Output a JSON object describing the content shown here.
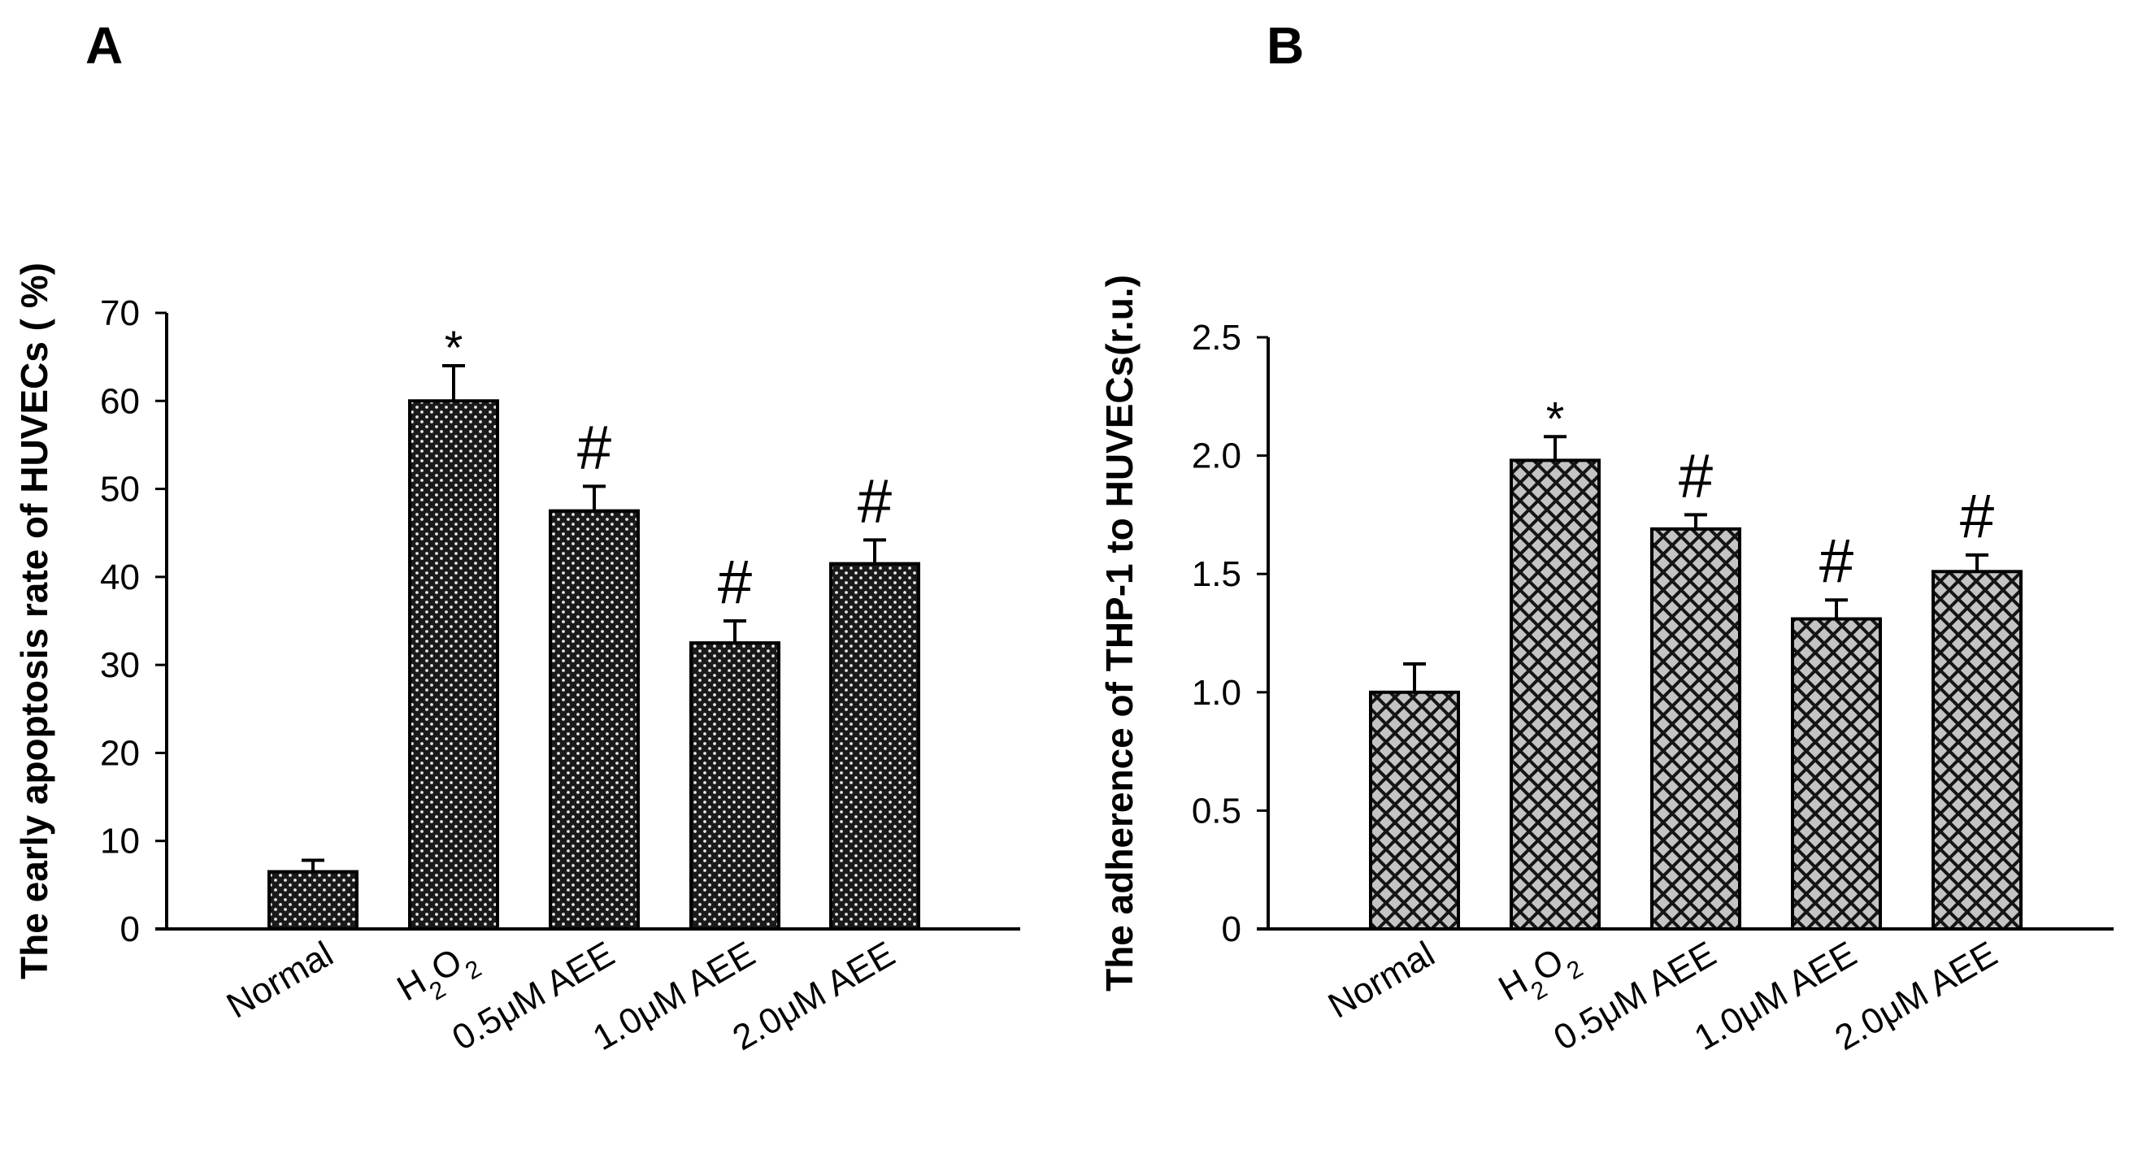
{
  "chart_data": [
    {
      "type": "bar",
      "panel_label": "A",
      "categories": [
        "Normal",
        "H2O2",
        "0.5μM AEE",
        "1.0μM AEE",
        "2.0μM AEE"
      ],
      "values": [
        6.5,
        60,
        47.5,
        32.5,
        41.5
      ],
      "errors": [
        1.3,
        4,
        2.8,
        2.5,
        2.7
      ],
      "significance": [
        "",
        "*",
        "#",
        "#",
        "#"
      ],
      "ylabel": "The early apoptosis rate of HUVECs ( %)",
      "xlabel": "",
      "ylim": [
        0,
        70
      ],
      "yticks": [
        0,
        10,
        20,
        30,
        40,
        50,
        60,
        70
      ],
      "ytick_labels": [
        "0",
        "10",
        "20",
        "30",
        "40",
        "50",
        "60",
        "70"
      ],
      "pattern": "dots",
      "grid": false
    },
    {
      "type": "bar",
      "panel_label": "B",
      "categories": [
        "Normal",
        "H2O2",
        "0.5μM AEE",
        "1.0μM AEE",
        "2.0μM AEE"
      ],
      "values": [
        1.0,
        1.98,
        1.69,
        1.31,
        1.51
      ],
      "errors": [
        0.12,
        0.1,
        0.06,
        0.08,
        0.07
      ],
      "significance": [
        "",
        "*",
        "#",
        "#",
        "#"
      ],
      "ylabel": "The adherence of THP-1 to HUVECs(r.u.)",
      "xlabel": "",
      "ylim": [
        0,
        2.5
      ],
      "yticks": [
        0,
        0.5,
        1.0,
        1.5,
        2.0,
        2.5
      ],
      "ytick_labels": [
        "0",
        "0.5",
        "1.0",
        "1.5",
        "2.0",
        "2.5"
      ],
      "pattern": "crosshatch",
      "grid": false
    }
  ]
}
